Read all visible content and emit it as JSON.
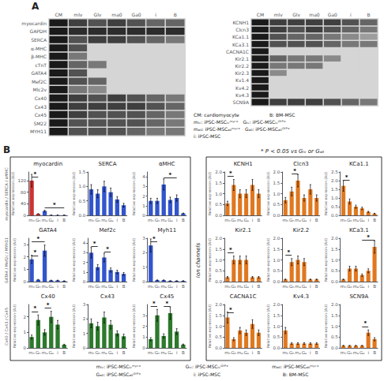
{
  "annotations": [
    "A",
    "CM: cardiomyocyte                    B: BM-MSC",
    "mₗᵥ: iPSC-MSCₗᵥᵐʸᶜ⁺   Gₗᵥ: iPSC-MSCₗᵥᴳᶠᴾ⁺",
    "mₐ₀: iPSC-MSCₐ₀ᵐʸᶜ⁺   Gₐ₀: iPSC-MSCₐ₀ᴳᶠᴾ⁺",
    "i: iPSC-MSC",
    "B",
    "* P < 0.05 vs Gₗᵥ or Gₐ₀",
    "Ion channels",
    "myocardin / SERCA / αMHC",
    "GATA4 / Mef2c / MYH11",
    "Cx40 / Cx43 / Cx45",
    "mₗᵥ: iPSC-MSCₗᵥᵐʸᶜ⁺",
    "Gₗᵥ: iPSC-MSCₗᵥᴳᶠᴾ⁺",
    "mₐ₀: iPSC-MSCₐ₀ᵐʸᶜ⁺",
    "Gₐ₀: iPSC-MSCₐ₀ᴳᶠᴾ⁺",
    "i: iPSC-MSC",
    "B: BM-MSC"
  ],
  "chart_data": [
    {
      "type": "heatmap",
      "x": [
        "CM",
        "mlv",
        "Glv",
        "ma0",
        "Ga0",
        "i",
        "B"
      ],
      "y": [
        "myocardin",
        "GAPDH",
        "SERCA",
        "α-MHC",
        "β-MHC",
        "cTnT",
        "GATA4",
        "Mef2C",
        "Mlc2v",
        "Cx40",
        "Cx43",
        "Cx45",
        "SM22",
        "MYH11"
      ],
      "cells": [
        [
          1.0,
          0.8,
          0.7,
          0.8,
          0.7,
          0.6,
          0.6
        ],
        [
          1.0,
          0.9,
          0.9,
          0.9,
          0.9,
          0.9,
          0.9
        ],
        [
          1.0,
          0.7,
          0.8,
          0.8,
          0.7,
          0.6,
          0.5
        ],
        [
          1.0,
          0.7,
          0.0,
          0.0,
          0.0,
          0.0,
          0.0
        ],
        [
          1.0,
          0.5,
          0.0,
          0.0,
          0.0,
          0.0,
          0.0
        ],
        [
          1.0,
          0.6,
          0.5,
          0.0,
          0.0,
          0.0,
          0.0
        ],
        [
          1.0,
          0.7,
          0.0,
          0.0,
          0.0,
          0.0,
          0.0
        ],
        [
          1.0,
          0.7,
          0.6,
          0.0,
          0.0,
          0.0,
          0.0
        ],
        [
          1.0,
          0.5,
          0.4,
          0.0,
          0.0,
          0.0,
          0.0
        ],
        [
          1.0,
          0.8,
          0.7,
          0.8,
          0.7,
          0.6,
          0.5
        ],
        [
          1.0,
          0.8,
          0.8,
          0.8,
          0.8,
          0.7,
          0.6
        ],
        [
          1.0,
          0.8,
          0.7,
          0.7,
          0.7,
          0.6,
          0.5
        ],
        [
          1.0,
          0.7,
          0.7,
          0.7,
          0.7,
          0.6,
          0.5
        ],
        [
          1.0,
          0.7,
          0.7,
          0.7,
          0.6,
          0.5,
          0.5
        ]
      ]
    },
    {
      "type": "heatmap",
      "x": [
        "CM",
        "mlv",
        "Glv",
        "ma0",
        "Ga0",
        "i",
        "B"
      ],
      "y": [
        "KCNH1",
        "Clcn3",
        "KCa1.1",
        "KCa3.1",
        "CACNA1C",
        "Kir2.1",
        "Kir2.2",
        "Kir2.3",
        "Kv1.4",
        "Kv4.2",
        "Kv4.3",
        "SCN9A"
      ],
      "cells": [
        [
          1.0,
          0.8,
          0.8,
          0.8,
          0.8,
          0.7,
          0.6
        ],
        [
          1.0,
          0.8,
          0.7,
          0.8,
          0.7,
          0.6,
          0.5
        ],
        [
          1.0,
          0.7,
          0.6,
          0.6,
          0.5,
          0.4,
          0.3
        ],
        [
          1.0,
          0.7,
          0.7,
          0.7,
          0.6,
          0.5,
          0.5
        ],
        [
          1.0,
          0.0,
          0.0,
          0.0,
          0.0,
          0.0,
          0.0
        ],
        [
          1.0,
          0.6,
          0.5,
          0.5,
          0.4,
          0.0,
          0.0
        ],
        [
          1.0,
          0.5,
          0.5,
          0.5,
          0.0,
          0.0,
          0.0
        ],
        [
          1.0,
          0.4,
          0.0,
          0.0,
          0.0,
          0.0,
          0.0
        ],
        [
          1.0,
          0.0,
          0.0,
          0.0,
          0.0,
          0.0,
          0.0
        ],
        [
          1.0,
          0.0,
          0.0,
          0.0,
          0.0,
          0.0,
          0.0
        ],
        [
          1.0,
          0.0,
          0.0,
          0.0,
          0.0,
          0.0,
          0.0
        ],
        [
          1.0,
          0.8,
          0.8,
          0.8,
          0.7,
          0.6,
          0.5
        ]
      ]
    },
    {
      "type": "bar",
      "title": "myocardin",
      "ylabel": "Relative expression (AU)",
      "categories": [
        "mₙ",
        "Gₙ",
        "mₐ",
        "Gₐ",
        "i",
        "B"
      ],
      "values": [
        120,
        5,
        15,
        1,
        1,
        1
      ],
      "errors": [
        21.6,
        0.9,
        2.7,
        0.18,
        0.18,
        0.18
      ],
      "colors": [
        "#cc3333",
        "#cc3333",
        "#3355cc",
        "#3355cc",
        "#3355cc",
        "#3355cc"
      ],
      "ylim": [
        0,
        150
      ],
      "yticks": [
        0,
        40,
        80,
        120
      ],
      "grid": false,
      "annotations": [
        {
          "text": "*",
          "x": [
            "mₙ",
            "Gₙ"
          ]
        },
        {
          "text": "*",
          "x": [
            "mₐ",
            "B"
          ]
        }
      ]
    },
    {
      "type": "bar",
      "title": "SERCA",
      "ylabel": "Relative expression (AU)",
      "categories": [
        "mₙ",
        "Gₙ",
        "mₐ",
        "Gₐ",
        "i",
        "B"
      ],
      "values": [
        0.9,
        0.75,
        1.0,
        0.8,
        0.55,
        0.35
      ],
      "errors": [
        0.162,
        0.135,
        0.18,
        0.144,
        0.099,
        0.063
      ],
      "color": "#3355cc",
      "ylim": [
        0,
        1.5
      ],
      "yticks": [
        {
          "value": 0,
          "label": "0.0"
        },
        0.5,
        {
          "value": 1,
          "label": "1.0"
        },
        1.5
      ],
      "grid": false
    },
    {
      "type": "bar",
      "title": "αMHC",
      "ylabel": "Relative expression (AU)",
      "categories": [
        "mₙ",
        "Gₙ",
        "mₐ",
        "Gₐ",
        "i",
        "B"
      ],
      "values": [
        1.5,
        1.5,
        3.2,
        1.6,
        1.8,
        0.2
      ],
      "errors": [
        0.27,
        0.27,
        0.576,
        0.288,
        0.324,
        0.036
      ],
      "color": "#3355cc",
      "ylim": [
        0,
        4.5
      ],
      "yticks": [
        0,
        1,
        2,
        3,
        4
      ],
      "grid": false,
      "annotations": [
        {
          "text": "*",
          "x": [
            "mₐ",
            "i"
          ]
        }
      ]
    },
    {
      "type": "bar",
      "title": "GATA4",
      "ylabel": "Relative expression (AU)",
      "categories": [
        "mₙ",
        "Gₙ",
        "mₐ",
        "Gₐ",
        "i",
        "B"
      ],
      "values": [
        1.8,
        0.15,
        2.5,
        0.1,
        0.1,
        0.05
      ],
      "errors": [
        0.324,
        0.027,
        0.45,
        0.018,
        0.018,
        0.009
      ],
      "color": "#3355cc",
      "ylim": [
        0,
        3.5
      ],
      "yticks": [
        0,
        1,
        2,
        3
      ],
      "grid": false,
      "annotations": [
        {
          "text": "*",
          "x": [
            "mₙ",
            "Gₙ"
          ]
        },
        {
          "text": "*",
          "x": [
            "mₙ",
            "mₐ"
          ]
        }
      ]
    },
    {
      "type": "bar",
      "title": "Mef2c",
      "ylabel": "Relative expression (AU)",
      "categories": [
        "mₙ",
        "Gₙ",
        "mₐ",
        "Gₐ",
        "i",
        "B"
      ],
      "values": [
        3.0,
        1.5,
        2.5,
        1.2,
        1.0,
        0.8
      ],
      "errors": [
        0.54,
        0.27,
        0.45,
        0.216,
        0.18,
        0.144
      ],
      "color": "#3355cc",
      "ylim": [
        0,
        4.5
      ],
      "yticks": [
        0,
        1,
        2,
        3,
        4
      ],
      "grid": false,
      "annotations": [
        {
          "text": "*",
          "x": [
            "mₙ",
            "Gₙ"
          ]
        },
        {
          "text": "*",
          "x": [
            "mₐ",
            "Gₐ"
          ]
        }
      ]
    },
    {
      "type": "bar",
      "title": "Myh11",
      "ylabel": "Relative expression (AU)",
      "categories": [
        "mₙ",
        "Gₙ",
        "mₐ",
        "Gₐ",
        "i",
        "B"
      ],
      "values": [
        2.5,
        0.1,
        0.1,
        0.05,
        0.05,
        0.05
      ],
      "errors": [
        0.45,
        0.018,
        0.018,
        0.009,
        0.009,
        0.009
      ],
      "color": "#3355cc",
      "ylim": [
        0,
        3.0
      ],
      "yticks": [
        0,
        1,
        2,
        3
      ],
      "grid": false,
      "annotations": [
        {
          "text": "*",
          "x": [
            "mₙ",
            "Gₙ"
          ]
        }
      ]
    },
    {
      "type": "bar",
      "title": "Cx40",
      "ylabel": "Relative expression (AU)",
      "categories": [
        "mₙ",
        "Gₙ",
        "mₐ",
        "Gₐ",
        "i",
        "B"
      ],
      "values": [
        0.7,
        1.8,
        1.0,
        2.0,
        1.5,
        0.2
      ],
      "errors": [
        0.126,
        0.324,
        0.18,
        0.36,
        0.27,
        0.036
      ],
      "color": "#2d7a2d",
      "ylim": [
        0,
        2.8
      ],
      "yticks": [
        0,
        1,
        2
      ],
      "grid": false,
      "annotations": [
        {
          "text": "*",
          "x": [
            "mₙ",
            "Gₙ"
          ]
        },
        {
          "text": "*",
          "x": [
            "mₐ",
            "Gₐ"
          ]
        }
      ]
    },
    {
      "type": "bar",
      "title": "Cx43",
      "ylabel": "Relative expression (AU)",
      "categories": [
        "mₙ",
        "Gₙ",
        "mₐ",
        "Gₐ",
        "i",
        "B"
      ],
      "values": [
        1.7,
        1.5,
        2.1,
        1.6,
        1.0,
        0.8
      ],
      "errors": [
        0.306,
        0.27,
        0.378,
        0.288,
        0.18,
        0.144
      ],
      "color": "#2d7a2d",
      "ylim": [
        0,
        3.0
      ],
      "yticks": [
        0,
        1,
        2,
        3
      ],
      "grid": false
    },
    {
      "type": "bar",
      "title": "Cx45",
      "ylabel": "Relative expression (AU)",
      "categories": [
        "mₙ",
        "Gₙ",
        "mₐ",
        "Gₐ",
        "i",
        "B"
      ],
      "values": [
        0.8,
        3.0,
        1.1,
        3.2,
        1.5,
        0.3
      ],
      "errors": [
        0.144,
        0.54,
        0.198,
        0.576,
        0.27,
        0.054
      ],
      "color": "#2d7a2d",
      "ylim": [
        0,
        4.0
      ],
      "yticks": [
        0,
        1,
        2,
        3
      ],
      "grid": false,
      "annotations": [
        {
          "text": "*",
          "x": [
            "mₙ",
            "Gₙ"
          ]
        },
        {
          "text": "*",
          "x": [
            "mₐ",
            "Gₐ"
          ]
        }
      ]
    },
    {
      "type": "bar",
      "title": "KCNH1",
      "ylabel": "Relative expression (AU)",
      "categories": [
        "mₙ",
        "Gₙ",
        "mₐ",
        "Gₐ",
        "i",
        "B"
      ],
      "values": [
        0.55,
        1.4,
        1.0,
        1.0,
        1.4,
        1.0
      ],
      "errors": [
        0.099,
        0.252,
        0.18,
        0.18,
        0.252,
        0.18
      ],
      "color": "#e07820",
      "ylim": [
        0,
        2.0
      ],
      "yticks": [
        {
          "value": 0,
          "label": "0.0"
        },
        0.5,
        {
          "value": 1,
          "label": "1.0"
        },
        1.5,
        {
          "value": 2,
          "label": "2.0"
        }
      ],
      "grid": false,
      "annotations": [
        {
          "text": "*",
          "x": [
            "mₙ",
            "Gₙ"
          ]
        }
      ]
    },
    {
      "type": "bar",
      "title": "Clcn3",
      "ylabel": "Relative expression (AU)",
      "categories": [
        "mₙ",
        "Gₙ",
        "mₐ",
        "Gₐ",
        "i",
        "B"
      ],
      "values": [
        0.7,
        1.1,
        1.6,
        0.8,
        1.2,
        0.8
      ],
      "errors": [
        0.126,
        0.198,
        0.288,
        0.144,
        0.216,
        0.144
      ],
      "color": "#e07820",
      "ylim": [
        0,
        2.0
      ],
      "yticks": [
        {
          "value": 0,
          "label": "0.0"
        },
        0.5,
        {
          "value": 1,
          "label": "1.0"
        },
        1.5,
        {
          "value": 2,
          "label": "2.0"
        }
      ],
      "grid": false,
      "annotations": [
        {
          "text": "*",
          "x": [
            "Gₙ",
            "mₐ"
          ]
        }
      ]
    },
    {
      "type": "bar",
      "title": "KCa1.1",
      "ylabel": "Relative expression (AU)",
      "categories": [
        "mₙ",
        "Gₙ",
        "mₐ",
        "Gₐ",
        "i",
        "B"
      ],
      "values": [
        1.7,
        0.8,
        0.5,
        0.4,
        0.2,
        0.1
      ],
      "errors": [
        0.306,
        0.144,
        0.09,
        0.072,
        0.036,
        0.018
      ],
      "color": "#e07820",
      "ylim": [
        0,
        2.5
      ],
      "yticks": [
        {
          "value": 0,
          "label": "0.0"
        },
        0.5,
        {
          "value": 1,
          "label": "1.0"
        },
        1.5,
        {
          "value": 2,
          "label": "2.0"
        },
        2.5
      ],
      "grid": false,
      "annotations": [
        {
          "text": "*",
          "x": [
            "mₙ",
            "Gₙ"
          ]
        }
      ]
    },
    {
      "type": "bar",
      "title": "Kir2.1",
      "ylabel": "Relative expression (AU)",
      "categories": [
        "mₙ",
        "Gₙ",
        "mₐ",
        "Gₐ",
        "i",
        "B"
      ],
      "values": [
        0.2,
        1.0,
        1.0,
        1.0,
        0.2,
        0.2
      ],
      "errors": [
        0.036,
        0.18,
        0.18,
        0.18,
        0.036,
        0.036
      ],
      "color": "#e07820",
      "ylim": [
        0,
        2.0
      ],
      "yticks": [
        {
          "value": 0,
          "label": "0.0"
        },
        0.5,
        {
          "value": 1,
          "label": "1.0"
        },
        1.5,
        {
          "value": 2,
          "label": "2.0"
        }
      ],
      "grid": false,
      "annotations": [
        {
          "text": "*",
          "x": [
            "mₙ",
            "Gₙ"
          ]
        }
      ]
    },
    {
      "type": "bar",
      "title": "Kir2.2",
      "ylabel": "Relative expression (AU)",
      "categories": [
        "mₙ",
        "Gₙ",
        "mₐ",
        "Gₐ",
        "i",
        "B"
      ],
      "values": [
        0.1,
        0.9,
        1.0,
        0.9,
        0.1,
        0.1
      ],
      "errors": [
        0.018,
        0.162,
        0.18,
        0.162,
        0.018,
        0.018
      ],
      "color": "#e07820",
      "ylim": [
        0,
        2.0
      ],
      "yticks": [
        {
          "value": 0,
          "label": "0.0"
        },
        0.5,
        {
          "value": 1,
          "label": "1.0"
        },
        1.5,
        {
          "value": 2,
          "label": "2.0"
        }
      ],
      "grid": false,
      "annotations": [
        {
          "text": "*",
          "x": [
            "mₙ",
            "Gₙ"
          ]
        }
      ]
    },
    {
      "type": "bar",
      "title": "KCa3.1",
      "ylabel": "Relative expression (AU)",
      "categories": [
        "mₙ",
        "Gₙ",
        "mₐ",
        "Gₐ",
        "i",
        "B"
      ],
      "values": [
        0.1,
        0.6,
        0.6,
        0.3,
        0.5,
        1.6
      ],
      "errors": [
        0.018,
        0.108,
        0.108,
        0.054,
        0.09,
        0.288
      ],
      "color": "#e07820",
      "ylim": [
        0,
        2.0
      ],
      "yticks": [
        {
          "value": 0,
          "label": "0.0"
        },
        0.5,
        {
          "value": 1,
          "label": "1.0"
        },
        1.5,
        {
          "value": 2,
          "label": "2.0"
        }
      ],
      "grid": false,
      "annotations": [
        {
          "text": "*",
          "x": [
            "Gₐ",
            "B"
          ]
        }
      ]
    },
    {
      "type": "bar",
      "title": "CACNA1C",
      "ylabel": "Relative expression (AU)",
      "categories": [
        "mₙ",
        "Gₙ",
        "mₐ",
        "Gₐ",
        "i",
        "B"
      ],
      "values": [
        1.4,
        0.4,
        0.8,
        0.7,
        1.1,
        0.7
      ],
      "errors": [
        0.252,
        0.072,
        0.144,
        0.126,
        0.198,
        0.126
      ],
      "color": "#e07820",
      "ylim": [
        0,
        2.0
      ],
      "yticks": [
        {
          "value": 0,
          "label": "0.0"
        },
        0.5,
        {
          "value": 1,
          "label": "1.0"
        },
        1.5,
        {
          "value": 2,
          "label": "2.0"
        }
      ],
      "grid": false,
      "annotations": [
        {
          "text": "*",
          "x": [
            "mₙ",
            "Gₙ"
          ]
        }
      ]
    },
    {
      "type": "bar",
      "title": "Kv4.3",
      "ylabel": "Relative expression (AU)",
      "categories": [
        "mₙ",
        "Gₙ",
        "mₐ",
        "Gₐ",
        "i",
        "B"
      ],
      "values": [
        0.8,
        0.2,
        0.2,
        0.2,
        0.2,
        0.2
      ],
      "errors": [
        0.144,
        0.036,
        0.036,
        0.036,
        0.036,
        0.036
      ],
      "color": "#e07820",
      "ylim": [
        0,
        2.0
      ],
      "yticks": [
        {
          "value": 0,
          "label": "0.0"
        },
        0.5,
        {
          "value": 1,
          "label": "1.0"
        },
        1.5,
        {
          "value": 2,
          "label": "2.0"
        }
      ],
      "grid": false
    },
    {
      "type": "bar",
      "title": "SCN9A",
      "ylabel": "Relative expression (AU)",
      "categories": [
        "mₙ",
        "Gₙ",
        "mₐ",
        "Gₐ",
        "i",
        "B"
      ],
      "values": [
        0.1,
        0.1,
        0.1,
        0.1,
        0.7,
        0.4
      ],
      "errors": [
        0.018,
        0.018,
        0.018,
        0.018,
        0.126,
        0.072
      ],
      "color": "#e07820",
      "ylim": [
        0,
        2.0
      ],
      "yticks": [
        {
          "value": 0,
          "label": "0.0"
        },
        0.5,
        {
          "value": 1,
          "label": "1.0"
        },
        1.5,
        {
          "value": 2,
          "label": "2.0"
        }
      ],
      "grid": false,
      "annotations": [
        {
          "text": "*",
          "x": [
            "Gₐ",
            "i"
          ]
        }
      ]
    }
  ]
}
